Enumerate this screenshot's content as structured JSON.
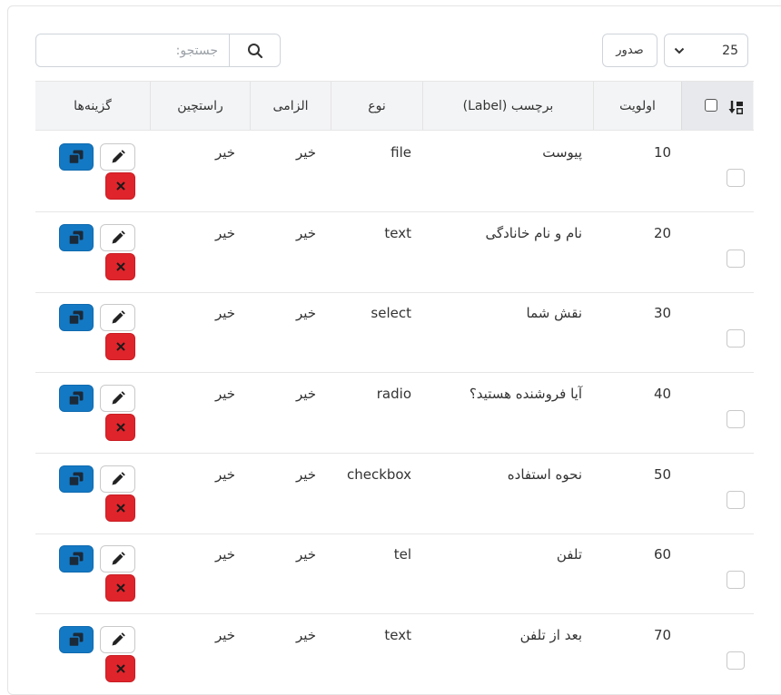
{
  "toolbar": {
    "search_placeholder": "جستجو:",
    "export_label": "صدور",
    "page_size": "25"
  },
  "table": {
    "headers": {
      "priority": "اولویت",
      "label": "برچسب (Label)",
      "type": "نوع",
      "required": "الزامی",
      "rtl": "راستچین",
      "options": "گزینه‌ها"
    },
    "rows": [
      {
        "priority": "10",
        "label": "پیوست",
        "type": "file",
        "required": "خیر",
        "rtl": "خیر"
      },
      {
        "priority": "20",
        "label": "نام و نام خانادگی",
        "type": "text",
        "required": "خیر",
        "rtl": "خیر"
      },
      {
        "priority": "30",
        "label": "نقش شما",
        "type": "select",
        "required": "خیر",
        "rtl": "خیر"
      },
      {
        "priority": "40",
        "label": "آیا فروشنده هستید؟",
        "type": "radio",
        "required": "خیر",
        "rtl": "خیر"
      },
      {
        "priority": "50",
        "label": "نحوه استفاده",
        "type": "checkbox",
        "required": "خیر",
        "rtl": "خیر"
      },
      {
        "priority": "60",
        "label": "تلفن",
        "type": "tel",
        "required": "خیر",
        "rtl": "خیر"
      },
      {
        "priority": "70",
        "label": "بعد از تلفن",
        "type": "text",
        "required": "خیر",
        "rtl": "خیر"
      }
    ]
  },
  "icons": {
    "search": "search-icon",
    "chevron": "chevron-down-icon",
    "sort": "sort-descending-icon",
    "copy": "copy-icon",
    "edit": "pencil-icon",
    "delete": "close-icon"
  },
  "colors": {
    "copy_button": "#1479c4",
    "delete_button": "#e0242b",
    "header_bg": "#f3f4f6"
  }
}
